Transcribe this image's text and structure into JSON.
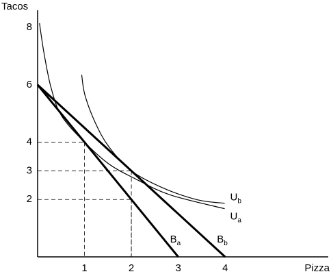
{
  "chart_data": {
    "type": "line",
    "x_label": "Pizza",
    "y_label": "Tacos",
    "xlim": [
      0,
      6.2
    ],
    "ylim": [
      0,
      8.6
    ],
    "xticks": [
      1,
      2,
      3,
      4
    ],
    "yticks": [
      2,
      3,
      4,
      6,
      8
    ],
    "reference_points": [
      {
        "x": 1,
        "y": 4
      },
      {
        "x": 2,
        "y": 3
      },
      {
        "x": 2,
        "y": 2
      }
    ],
    "series": [
      {
        "name": "Ba",
        "color": "#000000",
        "style": "bold",
        "x": [
          0,
          3
        ],
        "values": [
          6,
          0
        ]
      },
      {
        "name": "Bb",
        "color": "#000000",
        "style": "bold",
        "x": [
          0,
          4
        ],
        "values": [
          6,
          0
        ]
      },
      {
        "name": "Ub",
        "color": "#000000",
        "style": "thin",
        "x": [
          0.94,
          1.01,
          1.23,
          1.52,
          2.0,
          2.68,
          3.41,
          3.99
        ],
        "values": [
          6.35,
          5.64,
          4.68,
          3.84,
          3.0,
          2.4,
          1.99,
          1.87
        ]
      },
      {
        "name": "Ua",
        "color": "#000000",
        "style": "thin",
        "x": [
          0.04,
          0.14,
          0.29,
          0.51,
          1.0,
          1.52,
          2.1,
          2.83,
          3.99
        ],
        "values": [
          8.15,
          7.07,
          5.88,
          4.92,
          4.0,
          3.24,
          2.71,
          2.16,
          1.68
        ]
      }
    ]
  }
}
